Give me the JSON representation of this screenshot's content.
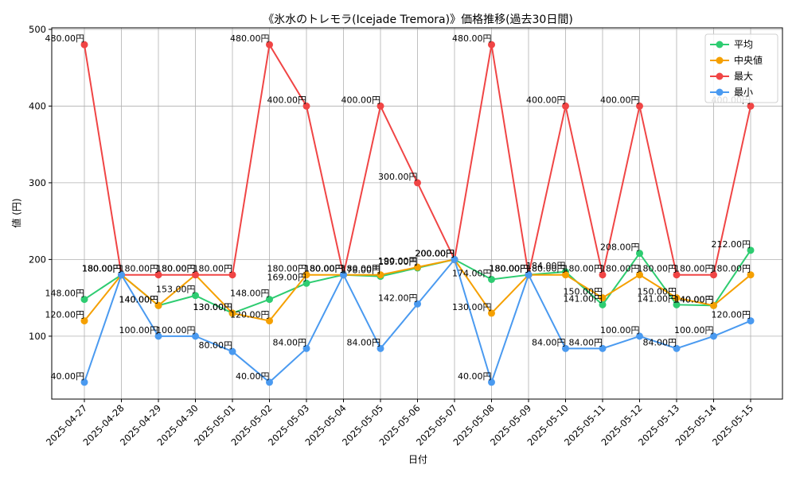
{
  "chart_data": {
    "type": "line",
    "title": "《氷水のトレモラ(Icejade Tremora)》価格推移(過去30日間)",
    "xlabel": "日付",
    "ylabel": "値 (円)",
    "ylim": [
      18,
      502
    ],
    "yticks": [
      100,
      200,
      300,
      400,
      500
    ],
    "grid": true,
    "legend_position": "top-right",
    "categories": [
      "2025-04-27",
      "2025-04-28",
      "2025-04-29",
      "2025-04-30",
      "2025-05-01",
      "2025-05-02",
      "2025-05-03",
      "2025-05-04",
      "2025-05-05",
      "2025-05-06",
      "2025-05-07",
      "2025-05-08",
      "2025-05-09",
      "2025-05-10",
      "2025-05-11",
      "2025-05-12",
      "2025-05-13",
      "2025-05-14",
      "2025-05-15"
    ],
    "series": [
      {
        "name": "平均",
        "color": "#2ecc71",
        "values": [
          148,
          180,
          140,
          153,
          130,
          148,
          169,
          180,
          178,
          189,
          200,
          174,
          180,
          184,
          141,
          208,
          141,
          140,
          212
        ],
        "labels": [
          "148.00円",
          "180.00円",
          "140.00円",
          "153.00円",
          "130.00円",
          "148.00円",
          "169.00円",
          "180.00円",
          "178.00円",
          "189.00円",
          "200.00円",
          "174.00円",
          "180.00円",
          "184.00円",
          "141.00円",
          "208.00円",
          "141.00円",
          "140.00円",
          "212.00円"
        ]
      },
      {
        "name": "中央値",
        "color": "#f5a000",
        "values": [
          120,
          180,
          140,
          180,
          130,
          120,
          180,
          180,
          180,
          190,
          200,
          130,
          180,
          180,
          150,
          180,
          150,
          140,
          180
        ],
        "labels": [
          "120.00円",
          "180.00円",
          "140.00円",
          "180.00円",
          "130.00円",
          "120.00円",
          "180.00円",
          "180.00円",
          "180.00円",
          "190.00円",
          "200.00円",
          "130.00円",
          "180.00円",
          "180.00円",
          "150.00円",
          "180.00円",
          "150.00円",
          "140.00円",
          "180.00円"
        ]
      },
      {
        "name": "最大",
        "color": "#f04545",
        "values": [
          480,
          180,
          180,
          180,
          180,
          480,
          400,
          180,
          400,
          300,
          200,
          480,
          180,
          400,
          180,
          400,
          180,
          180,
          400
        ],
        "labels": [
          "480.00円",
          "180.00円",
          "180.00円",
          "180.00円",
          "180.00円",
          "480.00円",
          "400.00円",
          "180.00円",
          "400.00円",
          "300.00円",
          "200.00円",
          "480.00円",
          "180.00円",
          "400.00円",
          "180.00円",
          "400.00円",
          "180.00円",
          "180.00円",
          "400.00円"
        ]
      },
      {
        "name": "最小",
        "color": "#4a9af0",
        "values": [
          40,
          180,
          100,
          100,
          80,
          40,
          84,
          180,
          84,
          142,
          200,
          40,
          180,
          84,
          84,
          100,
          84,
          100,
          120
        ],
        "labels": [
          "40.00円",
          "180.00円",
          "100.00円",
          "100.00円",
          "80.00円",
          "40.00円",
          "84.00円",
          "180.00円",
          "84.00円",
          "142.00円",
          "200.00円",
          "40.00円",
          "180.00円",
          "84.00円",
          "84.00円",
          "100.00円",
          "84.00円",
          "100.00円",
          "120.00円"
        ]
      }
    ]
  }
}
